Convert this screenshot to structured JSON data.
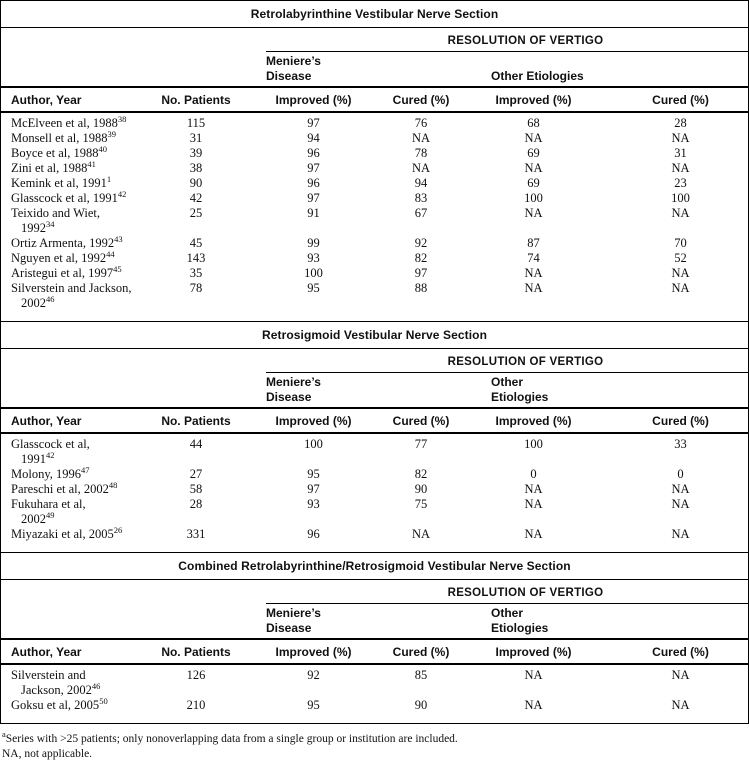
{
  "table": {
    "resolution_header": "RESOLUTION OF VERTIGO",
    "column_headers": [
      "Author, Year",
      "No. Patients",
      "Improved (%)",
      "Cured (%)",
      "Improved (%)",
      "Cured (%)"
    ],
    "sections": [
      {
        "title": "Retrolabyrinthine Vestibular Nerve Section",
        "group_meniere": "Meniere’s\nDisease",
        "group_other": "Other Etiologies",
        "rows": [
          {
            "author": [
              {
                "text": "McElveen et al, 1988",
                "sup": "38"
              }
            ],
            "values": [
              "115",
              "97",
              "76",
              "68",
              "28"
            ]
          },
          {
            "author": [
              {
                "text": "Monsell et al, 1988",
                "sup": "39"
              }
            ],
            "values": [
              "31",
              "94",
              "NA",
              "NA",
              "NA"
            ]
          },
          {
            "author": [
              {
                "text": "Boyce et al, 1988",
                "sup": "40"
              }
            ],
            "values": [
              "39",
              "96",
              "78",
              "69",
              "31"
            ]
          },
          {
            "author": [
              {
                "text": "Zini et al, 1988",
                "sup": "41"
              }
            ],
            "values": [
              "38",
              "97",
              "NA",
              "NA",
              "NA"
            ]
          },
          {
            "author": [
              {
                "text": "Kemink et al, 1991",
                "sup": "1"
              }
            ],
            "values": [
              "90",
              "96",
              "94",
              "69",
              "23"
            ]
          },
          {
            "author": [
              {
                "text": "Glasscock et al, 1991",
                "sup": "42"
              }
            ],
            "values": [
              "42",
              "97",
              "83",
              "100",
              "100"
            ]
          },
          {
            "author": [
              {
                "text": "Teixido and Wiet,"
              },
              {
                "text": "1992",
                "sup": "34"
              }
            ],
            "values": [
              "25",
              "91",
              "67",
              "NA",
              "NA"
            ]
          },
          {
            "author": [
              {
                "text": "Ortiz Armenta, 1992",
                "sup": "43"
              }
            ],
            "values": [
              "45",
              "99",
              "92",
              "87",
              "70"
            ]
          },
          {
            "author": [
              {
                "text": "Nguyen et al, 1992",
                "sup": "44"
              }
            ],
            "values": [
              "143",
              "93",
              "82",
              "74",
              "52"
            ]
          },
          {
            "author": [
              {
                "text": "Aristegui et al, 1997",
                "sup": "45"
              }
            ],
            "values": [
              "35",
              "100",
              "97",
              "NA",
              "NA"
            ]
          },
          {
            "author": [
              {
                "text": "Silverstein and Jackson,"
              },
              {
                "text": "2002",
                "sup": "46"
              }
            ],
            "values": [
              "78",
              "95",
              "88",
              "NA",
              "NA"
            ]
          }
        ]
      },
      {
        "title": "Retrosigmoid Vestibular Nerve Section",
        "group_meniere": "Meniere’s\nDisease",
        "group_other": "Other\nEtiologies",
        "rows": [
          {
            "author": [
              {
                "text": "Glasscock et al,"
              },
              {
                "text": "1991",
                "sup": "42"
              }
            ],
            "values": [
              "44",
              "100",
              "77",
              "100",
              "33"
            ]
          },
          {
            "author": [
              {
                "text": "Molony, 1996",
                "sup": "47"
              }
            ],
            "values": [
              "27",
              "95",
              "82",
              "0",
              "0"
            ]
          },
          {
            "author": [
              {
                "text": "Pareschi et al, 2002",
                "sup": "48"
              }
            ],
            "values": [
              "58",
              "97",
              "90",
              "NA",
              "NA"
            ]
          },
          {
            "author": [
              {
                "text": "Fukuhara et al,"
              },
              {
                "text": "2002",
                "sup": "49"
              }
            ],
            "values": [
              "28",
              "93",
              "75",
              "NA",
              "NA"
            ]
          },
          {
            "author": [
              {
                "text": "Miyazaki et al, 2005",
                "sup": "26"
              }
            ],
            "values": [
              "331",
              "96",
              "NA",
              "NA",
              "NA"
            ]
          }
        ]
      },
      {
        "title": "Combined Retrolabyrinthine/Retrosigmoid Vestibular Nerve Section",
        "group_meniere": "Meniere’s\nDisease",
        "group_other": "Other\nEtiologies",
        "rows": [
          {
            "author": [
              {
                "text": "Silverstein and"
              },
              {
                "text": "Jackson, 2002",
                "sup": "46"
              }
            ],
            "values": [
              "126",
              "92",
              "85",
              "NA",
              "NA"
            ]
          },
          {
            "author": [
              {
                "text": "Goksu et al, 2005",
                "sup": "50"
              }
            ],
            "values": [
              "210",
              "95",
              "90",
              "NA",
              "NA"
            ]
          }
        ]
      }
    ]
  },
  "footnotes": {
    "note_a_marker": "a",
    "note_a_text": "Series with >25 patients; only nonoverlapping data from a single group or institution are included.",
    "note_na_text": "NA, not applicable."
  }
}
